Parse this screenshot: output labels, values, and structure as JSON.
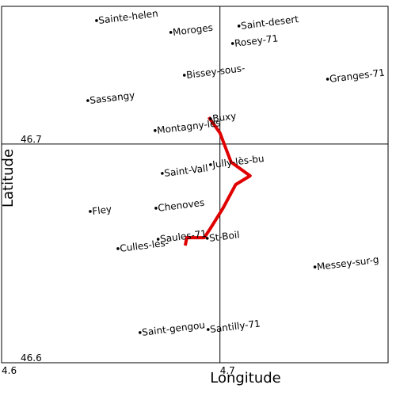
{
  "chart_data": {
    "type": "scatter",
    "xlabel": "Longitude",
    "ylabel": "Latitude",
    "xlim": [
      4.6,
      4.777
    ],
    "ylim": [
      46.6,
      46.763
    ],
    "xticks": [
      4.6,
      4.7
    ],
    "yticks": [
      46.6,
      46.7
    ],
    "grid": true,
    "points": {
      "labels": [
        "Sainte-helen",
        "Moroges",
        "Saint-desert",
        "Rosey-71",
        "Bissey-sous-",
        "Granges-71",
        "Sassangy",
        "Montagny-lès",
        "Buxy",
        "Saint-Vall",
        "Jully-lès-bu",
        "Chenoves",
        "Fley",
        "Saules-71",
        "St-Boil",
        "Culles-les-",
        "Messey-sur-g",
        "Saint-gengou",
        "Santilly-71"
      ],
      "x": [
        4.6435,
        4.6775,
        4.7087,
        4.7058,
        4.6837,
        4.7493,
        4.6395,
        4.6703,
        4.6957,
        4.6736,
        4.6957,
        4.6707,
        4.6406,
        4.6717,
        4.6942,
        4.6533,
        4.7435,
        4.6634,
        4.6946
      ],
      "y": [
        46.7565,
        46.7511,
        46.754,
        46.746,
        46.7315,
        46.7297,
        46.7199,
        46.7062,
        46.7116,
        46.6866,
        46.6906,
        46.6707,
        46.6692,
        46.6565,
        46.6569,
        46.6522,
        46.6438,
        46.6138,
        46.6152
      ],
      "color": "#000000"
    },
    "route": {
      "x": [
        4.6949,
        4.7,
        4.7051,
        4.7138,
        4.7072,
        4.7014,
        4.6953,
        4.6928,
        4.6848,
        4.6841
      ],
      "y": [
        46.7123,
        46.7051,
        46.6917,
        46.6855,
        46.6815,
        46.6707,
        46.6609,
        46.6572,
        46.6572,
        46.6536
      ],
      "color": "#e00000"
    }
  }
}
